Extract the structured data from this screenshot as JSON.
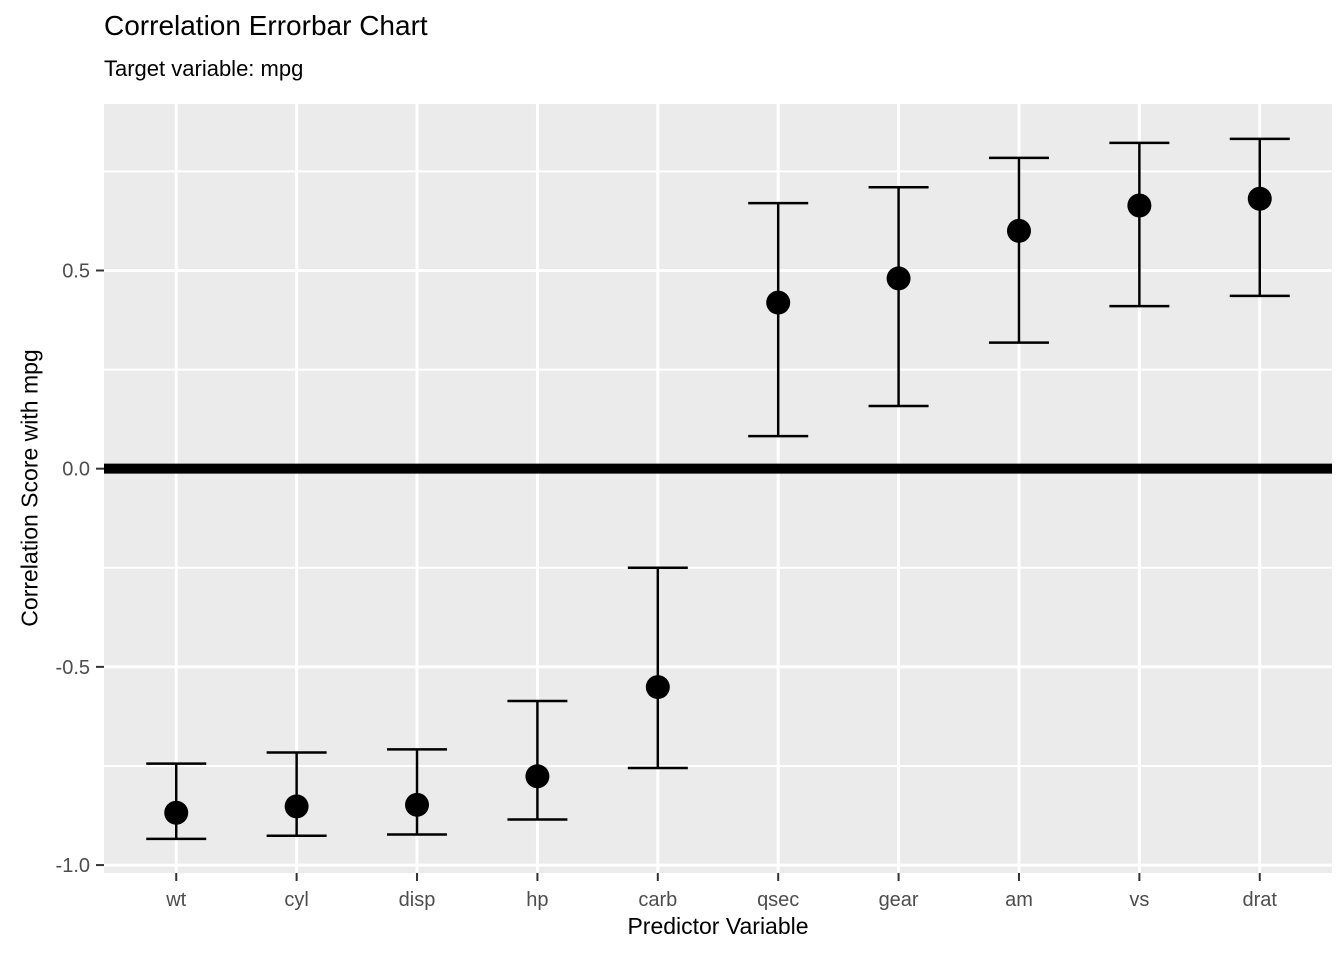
{
  "chart_data": {
    "type": "errorbar",
    "title": "Correlation Errorbar Chart",
    "subtitle": "Target variable: mpg",
    "xlabel": "Predictor Variable",
    "ylabel": "Correlation Score with mpg",
    "categories": [
      "wt",
      "cyl",
      "disp",
      "hp",
      "carb",
      "qsec",
      "gear",
      "am",
      "vs",
      "drat"
    ],
    "values": [
      -0.868,
      -0.852,
      -0.848,
      -0.776,
      -0.551,
      0.419,
      0.48,
      0.6,
      0.664,
      0.681
    ],
    "ci_low": [
      -0.934,
      -0.926,
      -0.923,
      -0.885,
      -0.755,
      0.082,
      0.158,
      0.318,
      0.41,
      0.436
    ],
    "ci_high": [
      -0.744,
      -0.716,
      -0.708,
      -0.586,
      -0.25,
      0.67,
      0.71,
      0.784,
      0.822,
      0.832
    ],
    "ylim": [
      -1.02,
      0.92
    ],
    "y_major_ticks": [
      0.5,
      0.0,
      -0.5,
      -1.0
    ],
    "y_tick_labels": [
      "0.5",
      "0.0",
      "-0.5",
      "-1.0"
    ],
    "y_minor_ticks": [
      0.75,
      0.25,
      -0.25,
      -0.75
    ],
    "zero_line": {
      "y": 0.0,
      "thickness": 10,
      "color": "#000000"
    },
    "grid": true,
    "legend": "none",
    "colors": {
      "panel_bg": "#EBEBEB",
      "grid": "#FFFFFF",
      "point": "#000000",
      "errorbar": "#000000",
      "tick_mark": "#333333",
      "tick_label": "#4D4D4D",
      "axis_title": "#000000",
      "title": "#000000"
    }
  }
}
